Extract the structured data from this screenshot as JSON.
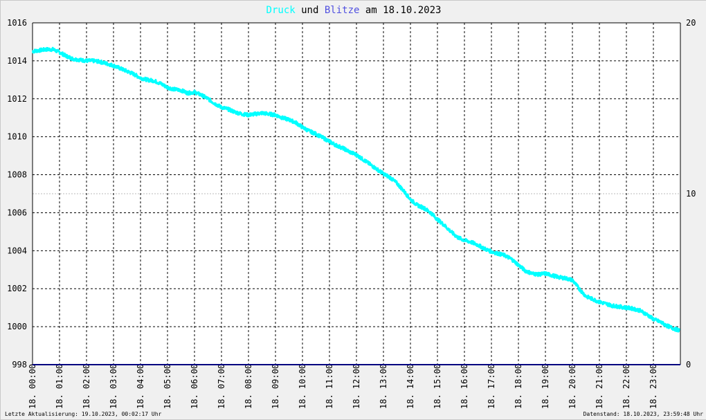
{
  "header": {
    "word1": "Druck",
    "word2": "und",
    "word3": "Blitze",
    "word4": "am",
    "date": "18.10.2023"
  },
  "colors": {
    "pressure": "#00ffff",
    "lightning": "#5050e0",
    "baseline": "#000080",
    "grid": "#000000",
    "text": "#000000"
  },
  "footer": {
    "left": "Letzte Aktualisierung: 19.10.2023, 00:02:17 Uhr",
    "right": "Datenstand: 18.10.2023, 23:59:48 Uhr"
  },
  "chart_data": {
    "type": "line",
    "title": "Druck und Blitze am 18.10.2023",
    "xlabel": "",
    "ylabel": "",
    "x_tick_labels": [
      "18. 00:00",
      "18. 01:00",
      "18. 02:00",
      "18. 03:00",
      "18. 04:00",
      "18. 05:00",
      "18. 06:00",
      "18. 07:00",
      "18. 08:00",
      "18. 09:00",
      "18. 10:00",
      "18. 11:00",
      "18. 12:00",
      "18. 13:00",
      "18. 14:00",
      "18. 15:00",
      "18. 16:00",
      "18. 17:00",
      "18. 18:00",
      "18. 19:00",
      "18. 20:00",
      "18. 21:00",
      "18. 22:00",
      "18. 23:00"
    ],
    "xlim_hours": [
      0,
      24
    ],
    "y_left": {
      "ticks": [
        "998",
        "1000",
        "1002",
        "1004",
        "1006",
        "1008",
        "1010",
        "1012",
        "1014",
        "1016"
      ],
      "lim": [
        998,
        1016
      ]
    },
    "y_right": {
      "ticks": [
        "0",
        "10",
        "20"
      ],
      "lim": [
        0,
        20
      ]
    },
    "grid": true,
    "series": [
      {
        "axis": "left",
        "x": [
          0,
          0.25,
          0.5,
          0.75,
          1,
          1.25,
          1.5,
          1.75,
          2,
          2.25,
          2.5,
          2.75,
          3,
          3.25,
          3.5,
          3.75,
          4,
          4.25,
          4.5,
          4.75,
          5,
          5.25,
          5.5,
          5.75,
          6,
          6.25,
          6.5,
          6.75,
          7,
          7.25,
          7.5,
          7.75,
          8,
          8.25,
          8.5,
          8.75,
          9,
          9.25,
          9.5,
          9.75,
          10,
          10.25,
          10.5,
          10.75,
          11,
          11.25,
          11.5,
          11.75,
          12,
          12.25,
          12.5,
          12.75,
          13,
          13.25,
          13.5,
          13.75,
          14,
          14.25,
          14.5,
          14.75,
          15,
          15.25,
          15.5,
          15.75,
          16,
          16.25,
          16.5,
          16.75,
          17,
          17.25,
          17.5,
          17.75,
          18,
          18.25,
          18.5,
          18.75,
          19,
          19.25,
          19.5,
          19.75,
          20,
          20.25,
          20.5,
          20.75,
          21,
          21.25,
          21.5,
          21.75,
          22,
          22.25,
          22.5,
          22.75,
          23,
          23.25,
          23.5,
          23.75,
          23.97
        ],
        "y": [
          1014.5,
          1014.55,
          1014.6,
          1014.6,
          1014.45,
          1014.25,
          1014.1,
          1014.05,
          1014.0,
          1014.0,
          1013.95,
          1013.85,
          1013.75,
          1013.6,
          1013.45,
          1013.3,
          1013.1,
          1013.0,
          1012.95,
          1012.8,
          1012.6,
          1012.5,
          1012.45,
          1012.3,
          1012.35,
          1012.2,
          1012.0,
          1011.75,
          1011.55,
          1011.45,
          1011.3,
          1011.2,
          1011.15,
          1011.2,
          1011.25,
          1011.2,
          1011.15,
          1011.0,
          1010.9,
          1010.75,
          1010.5,
          1010.3,
          1010.15,
          1009.95,
          1009.75,
          1009.55,
          1009.4,
          1009.2,
          1009.05,
          1008.8,
          1008.55,
          1008.3,
          1008.05,
          1007.85,
          1007.55,
          1007.15,
          1006.7,
          1006.4,
          1006.25,
          1006.0,
          1005.65,
          1005.35,
          1005.0,
          1004.7,
          1004.55,
          1004.45,
          1004.3,
          1004.1,
          1003.95,
          1003.85,
          1003.75,
          1003.55,
          1003.25,
          1002.95,
          1002.8,
          1002.75,
          1002.8,
          1002.7,
          1002.6,
          1002.55,
          1002.45,
          1002.0,
          1001.6,
          1001.45,
          1001.3,
          1001.2,
          1001.1,
          1001.05,
          1001.0,
          1000.95,
          1000.85,
          1000.65,
          1000.4,
          1000.25,
          1000.05,
          999.9,
          999.8
        ]
      },
      {
        "axis": "right",
        "x": [
          0,
          24
        ],
        "y": [
          0,
          0
        ]
      }
    ]
  }
}
